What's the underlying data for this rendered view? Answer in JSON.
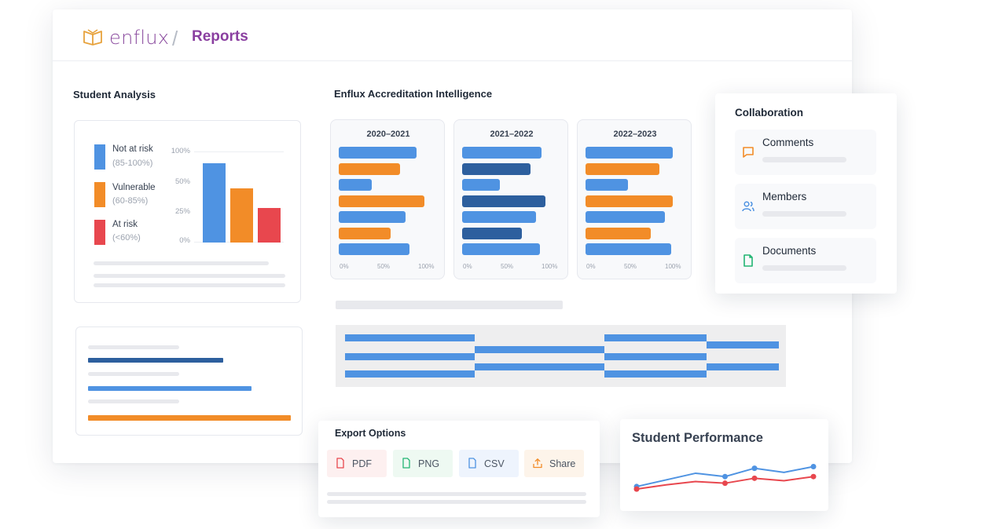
{
  "header": {
    "logo_text": "enflux",
    "separator": "/",
    "page_title": "Reports"
  },
  "colors": {
    "blue": "#4f93e2",
    "orange": "#f28c28",
    "red": "#e8474e",
    "navy": "#2d5f9e",
    "brand": "#8a3fa0",
    "logo_gold": "#e7a23c"
  },
  "student_analysis": {
    "title": "Student Analysis",
    "legend": [
      {
        "name": "Not at risk",
        "range": "(85-100%)",
        "color": "#4f93e2"
      },
      {
        "name": "Vulnerable",
        "range": "(60-85%)",
        "color": "#f28c28"
      },
      {
        "name": "At risk",
        "range": "(<60%)",
        "color": "#e8474e"
      }
    ],
    "y_ticks": [
      "100%",
      "50%",
      "25%",
      "0%"
    ]
  },
  "accreditation": {
    "title": "Enflux Accreditation Intelligence",
    "x_ticks": [
      "0%",
      "50%",
      "100%"
    ],
    "years": [
      {
        "label": "2020–2021"
      },
      {
        "label": "2021–2022"
      },
      {
        "label": "2022–2023"
      }
    ]
  },
  "collaboration": {
    "title": "Collaboration",
    "items": [
      {
        "label": "Comments",
        "icon": "comment-icon"
      },
      {
        "label": "Members",
        "icon": "users-icon"
      },
      {
        "label": "Documents",
        "icon": "document-icon"
      }
    ]
  },
  "export": {
    "title": "Export Options",
    "buttons": [
      {
        "label": "PDF",
        "icon": "file-icon"
      },
      {
        "label": "PNG",
        "icon": "file-icon"
      },
      {
        "label": "CSV",
        "icon": "file-icon"
      },
      {
        "label": "Share",
        "icon": "upload-icon"
      }
    ]
  },
  "performance": {
    "title": "Student Performance"
  },
  "chart_data": [
    {
      "type": "bar",
      "categories": [
        "Not at risk",
        "Vulnerable",
        "At risk"
      ],
      "values": [
        88,
        60,
        38
      ],
      "ylim": [
        0,
        100
      ],
      "y_ticks": [
        "100%",
        "50%",
        "25%",
        "0%"
      ],
      "colors": [
        "#4f93e2",
        "#f28c28",
        "#e8474e"
      ]
    },
    {
      "type": "bar",
      "orientation": "horizontal",
      "title": "2020–2021",
      "values": [
        0.84,
        0.66,
        0.36,
        0.92,
        0.72,
        0.56,
        0.76
      ],
      "colors": [
        "#4f93e2",
        "#f28c28",
        "#4f93e2",
        "#f28c28",
        "#4f93e2",
        "#f28c28",
        "#4f93e2"
      ],
      "xlim": [
        0,
        1
      ],
      "x_ticks": [
        "0%",
        "50%",
        "100%"
      ]
    },
    {
      "type": "bar",
      "orientation": "horizontal",
      "title": "2021–2022",
      "values": [
        0.86,
        0.74,
        0.41,
        0.9,
        0.8,
        0.64,
        0.84
      ],
      "colors": [
        "#4f93e2",
        "#2d5f9e",
        "#4f93e2",
        "#2d5f9e",
        "#4f93e2",
        "#2d5f9e",
        "#4f93e2"
      ],
      "xlim": [
        0,
        1
      ],
      "x_ticks": [
        "0%",
        "50%",
        "100%"
      ]
    },
    {
      "type": "bar",
      "orientation": "horizontal",
      "title": "2022–2023",
      "values": [
        0.94,
        0.8,
        0.46,
        0.94,
        0.86,
        0.7,
        0.92
      ],
      "colors": [
        "#4f93e2",
        "#f28c28",
        "#4f93e2",
        "#f28c28",
        "#4f93e2",
        "#f28c28",
        "#4f93e2"
      ],
      "xlim": [
        0,
        1
      ],
      "x_ticks": [
        "0%",
        "50%",
        "100%"
      ]
    },
    {
      "type": "line",
      "title": "Student Performance",
      "x": [
        1,
        2,
        3,
        4,
        5,
        6,
        7
      ],
      "series": [
        {
          "values": [
            58,
            66,
            74,
            70,
            80,
            75,
            82
          ],
          "color": "#4f93e2"
        },
        {
          "values": [
            55,
            60,
            64,
            62,
            68,
            65,
            70
          ],
          "color": "#e8474e"
        }
      ],
      "ylim": [
        40,
        90
      ]
    }
  ]
}
